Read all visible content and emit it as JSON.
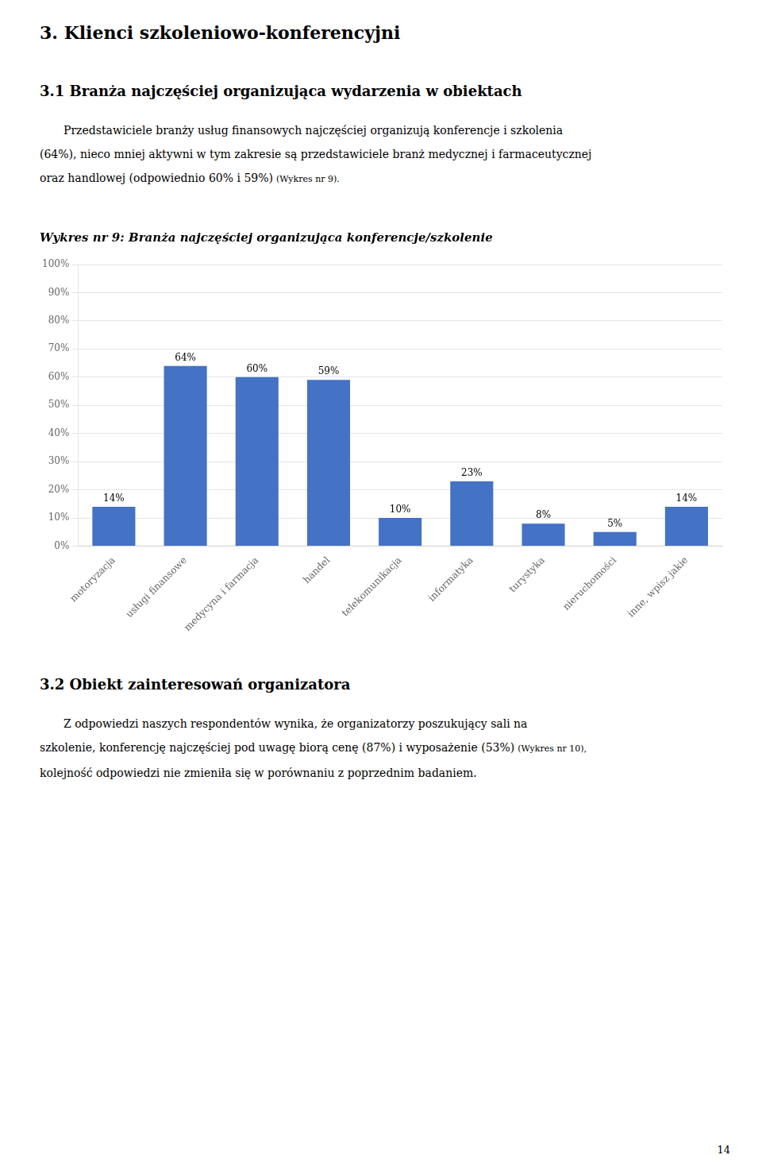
{
  "page_title": "3. Klienci szkoleniowo-konferencyjni",
  "text_before_chart": {
    "heading": "3.1 Branża najczęściej organizująca wydarzenia w obiektach",
    "lines": [
      [
        "Przedstawiciele branży usług finansowych najczęściej organizują konferencje i szkolenia"
      ],
      [
        "(64%), nieco mniej aktywni w tym zakresie są przedstawiciele branż medycznej i farmaceutycznej"
      ],
      [
        "oraz handlowej (odpowiednio 60% i 59%)",
        "(Wykres nr 9)."
      ]
    ]
  },
  "chart_data": {
    "type": "bar",
    "title": "Wykres nr 9: Branża najczęściej organizująca konferencje/szkolenie",
    "categories": [
      "motoryzacja",
      "usługi finansowe",
      "medycyna i farmacja",
      "handel",
      "telekomunikacja",
      "informatyka",
      "turystyka",
      "nieruchomości",
      "inne, wpisz jakie"
    ],
    "values": [
      14,
      64,
      60,
      59,
      10,
      23,
      8,
      5,
      14
    ],
    "value_labels": [
      "14%",
      "64%",
      "60%",
      "59%",
      "10%",
      "23%",
      "8%",
      "5%",
      "14%"
    ],
    "data_labels": true,
    "color": "#4472C4",
    "ylim": [
      0,
      100
    ],
    "yticks": [
      {
        "value": 0,
        "label": "0%"
      },
      {
        "value": 10,
        "label": "10%"
      },
      {
        "value": 20,
        "label": "20%"
      },
      {
        "value": 30,
        "label": "30%"
      },
      {
        "value": 40,
        "label": "40%"
      },
      {
        "value": 50,
        "label": "50%"
      },
      {
        "value": 60,
        "label": "60%"
      },
      {
        "value": 70,
        "label": "70%"
      },
      {
        "value": 80,
        "label": "80%"
      },
      {
        "value": 90,
        "label": "90%"
      },
      {
        "value": 100,
        "label": "100%"
      }
    ],
    "grid": true
  },
  "text_after_chart": {
    "heading": "3.2 Obiekt zainteresowań organizatora",
    "lines": [
      [
        "Z odpowiedzi naszych respondentów wynika, że organizatorzy poszukujący sali na"
      ],
      [
        "szkolenie, konferencję najczęściej pod uwagę biorą cenę (87%) i wyposażenie (53%)",
        "(Wykres nr 10),"
      ],
      [
        "kolejność odpowiedzi nie zmieniła się w porównaniu z poprzednim badaniem."
      ]
    ]
  },
  "page_number": "14"
}
